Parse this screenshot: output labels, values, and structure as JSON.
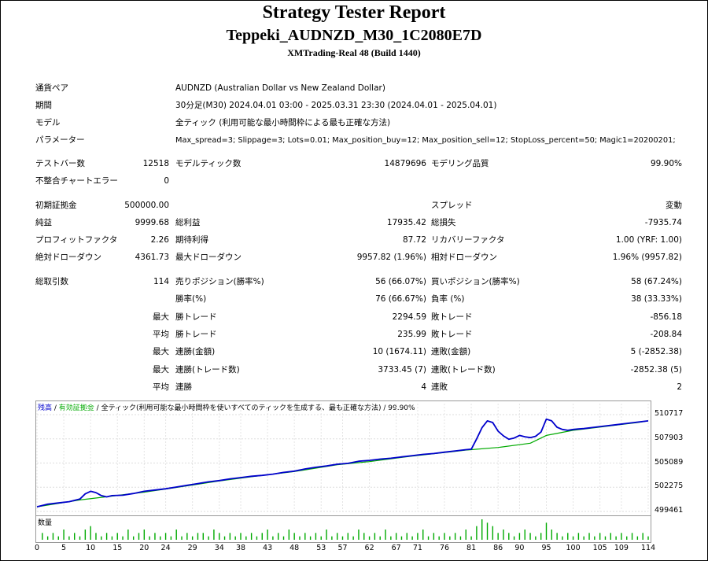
{
  "header": {
    "title": "Strategy Tester Report",
    "ea_name": "Teppeki_AUDNZD_M30_1C2080E7D",
    "server": "XMTrading-Real 48 (Build 1440)"
  },
  "settings": {
    "symbol_label": "通貨ペア",
    "symbol_value": "AUDNZD (Australian Dollar vs New Zealand Dollar)",
    "period_label": "期間",
    "period_value": "30分足(M30)  2024.04.01 03:00 - 2025.03.31 23:30 (2024.04.01 - 2025.04.01)",
    "model_label": "モデル",
    "model_value": "全ティック (利用可能な最小時間枠による最も正確な方法)",
    "params_label": "パラメーター",
    "params_value": "Max_spread=3; Slippage=3; Lots=0.01; Max_position_buy=12; Max_position_sell=12; StopLoss_percent=50; Magic1=20200201;"
  },
  "stats": {
    "bars_label": "テストバー数",
    "bars_value": "12518",
    "ticks_label": "モデルティック数",
    "ticks_value": "14879696",
    "quality_label": "モデリング品質",
    "quality_value": "99.90%",
    "mismatch_label": "不整合チャートエラー",
    "mismatch_value": "0",
    "deposit_label": "初期証拠金",
    "deposit_value": "500000.00",
    "spread_label": "スプレッド",
    "spread_value": "変動",
    "netprofit_label": "純益",
    "netprofit_value": "9999.68",
    "grossprofit_label": "総利益",
    "grossprofit_value": "17935.42",
    "grossloss_label": "総損失",
    "grossloss_value": "-7935.74",
    "pf_label": "プロフィットファクタ",
    "pf_value": "2.26",
    "payoff_label": "期待利得",
    "payoff_value": "87.72",
    "rf_label": "リカバリーファクタ",
    "rf_value": "1.00 (YRF: 1.00)",
    "absdd_label": "絶対ドローダウン",
    "absdd_value": "4361.73",
    "maxdd_label": "最大ドローダウン",
    "maxdd_value": "9957.82 (1.96%)",
    "reldd_label": "相対ドローダウン",
    "reldd_value": "1.96% (9957.82)",
    "trades_label": "総取引数",
    "trades_value": "114",
    "short_label": "売りポジション(勝率%)",
    "short_value": "56 (66.07%)",
    "long_label": "買いポジション(勝率%)",
    "long_value": "58 (67.24%)",
    "winrate_label": "勝率(%)",
    "winrate_value": "76 (66.67%)",
    "lossrate_label": "負率 (%)",
    "lossrate_value": "38 (33.33%)",
    "max_label": "最大",
    "avg_label": "平均",
    "maxwin_label": "勝トレード",
    "maxwin_value": "2294.59",
    "maxloss_label": "敗トレード",
    "maxloss_value": "-856.18",
    "avgwin_label": "勝トレード",
    "avgwin_value": "235.99",
    "avgloss_label": "敗トレード",
    "avgloss_value": "-208.84",
    "consecwins_money_label": "連勝(金額)",
    "consecwins_money_value": "10 (1674.11)",
    "consecloss_money_label": "連敗(金額)",
    "consecloss_money_value": "5 (-2852.38)",
    "consecwins_trades_label": "連勝(トレード数)",
    "consecwins_trades_value": "3733.45 (7)",
    "consecloss_trades_label": "連敗(トレード数)",
    "consecloss_trades_value": "-2852.38 (5)",
    "avgwins_label": "連勝",
    "avgwins_value": "4",
    "avglosses_label": "連敗",
    "avglosses_value": "2"
  },
  "chart_legend": {
    "balance": "残高",
    "sep1": " / ",
    "equity": "有効証拠金",
    "sep2": " / ",
    "desc": "全ティック(利用可能な最小時間枠を使いすべてのティックを生成する、最も正確な方法) / 99.90%",
    "volume": "数量"
  },
  "colors": {
    "balance": "#0000cc",
    "equity": "#00aa00",
    "volume": "#00aa00"
  },
  "chart_data": {
    "type": "line",
    "ylim": [
      499461,
      512000
    ],
    "yticks": [
      "510717",
      "507903",
      "505089",
      "502275",
      "499461"
    ],
    "ytick_values": [
      510717,
      507903,
      505089,
      502275,
      499461
    ],
    "xticks": [
      "0",
      "5",
      "10",
      "15",
      "20",
      "24",
      "29",
      "34",
      "38",
      "43",
      "48",
      "53",
      "57",
      "62",
      "67",
      "71",
      "76",
      "81",
      "86",
      "90",
      "95",
      "100",
      "105",
      "109",
      "114"
    ],
    "xlim": [
      0,
      114
    ],
    "series": [
      {
        "name": "残高",
        "x": [
          0,
          2,
          4,
          6,
          8,
          9,
          10,
          11,
          12,
          13,
          14,
          16,
          18,
          20,
          22,
          24,
          26,
          28,
          30,
          32,
          34,
          36,
          38,
          40,
          42,
          44,
          46,
          48,
          50,
          52,
          54,
          56,
          58,
          60,
          62,
          64,
          66,
          68,
          70,
          72,
          74,
          76,
          78,
          80,
          81,
          82,
          83,
          84,
          85,
          86,
          87,
          88,
          89,
          90,
          91,
          92,
          93,
          94,
          95,
          96,
          97,
          98,
          99,
          100,
          101,
          102,
          104,
          106,
          108,
          110,
          112,
          114
        ],
        "y": [
          500000,
          500300,
          500450,
          500600,
          500900,
          501500,
          501800,
          501650,
          501300,
          501150,
          501300,
          501350,
          501550,
          501800,
          501950,
          502100,
          502300,
          502500,
          502700,
          502900,
          503050,
          503250,
          503400,
          503550,
          503650,
          503800,
          504000,
          504150,
          504400,
          504600,
          504750,
          504950,
          505050,
          505300,
          505400,
          505550,
          505650,
          505800,
          505950,
          506100,
          506200,
          506350,
          506500,
          506650,
          506700,
          507900,
          509200,
          510000,
          509800,
          508800,
          508250,
          507850,
          508000,
          508300,
          508150,
          508050,
          508200,
          508700,
          510200,
          510000,
          509250,
          509000,
          508900,
          509000,
          509050,
          509100,
          509250,
          509400,
          509550,
          509700,
          509850,
          510000
        ]
      },
      {
        "name": "有効証拠金",
        "x": [
          0,
          8,
          14,
          20,
          26,
          34,
          40,
          48,
          56,
          62,
          70,
          78,
          80,
          81,
          86,
          92,
          95,
          100,
          104,
          108,
          112,
          114
        ],
        "y": [
          500000,
          500800,
          501250,
          501700,
          502250,
          503000,
          503500,
          504100,
          504900,
          505250,
          505900,
          506450,
          506600,
          506650,
          506900,
          507400,
          508300,
          508900,
          509200,
          509500,
          509800,
          510000
        ]
      }
    ],
    "volume": {
      "x": [
        1,
        2,
        3,
        4,
        5,
        6,
        7,
        8,
        9,
        10,
        11,
        12,
        13,
        14,
        15,
        16,
        17,
        18,
        19,
        20,
        21,
        22,
        23,
        24,
        25,
        26,
        27,
        28,
        29,
        30,
        31,
        32,
        33,
        34,
        35,
        36,
        37,
        38,
        39,
        40,
        41,
        42,
        43,
        44,
        45,
        46,
        47,
        48,
        49,
        50,
        51,
        52,
        53,
        54,
        55,
        56,
        57,
        58,
        59,
        60,
        61,
        62,
        63,
        64,
        65,
        66,
        67,
        68,
        69,
        70,
        71,
        72,
        73,
        74,
        75,
        76,
        77,
        78,
        79,
        80,
        81,
        82,
        83,
        84,
        85,
        86,
        87,
        88,
        89,
        90,
        91,
        92,
        93,
        94,
        95,
        96,
        97,
        98,
        99,
        100,
        101,
        102,
        103,
        104,
        105,
        106,
        107,
        108,
        109,
        110,
        111,
        112,
        113,
        114
      ],
      "y": [
        2,
        1,
        2,
        1,
        3,
        1,
        2,
        1,
        3,
        4,
        2,
        1,
        2,
        1,
        2,
        1,
        3,
        1,
        2,
        3,
        1,
        2,
        1,
        2,
        1,
        3,
        1,
        2,
        1,
        2,
        2,
        1,
        3,
        2,
        1,
        2,
        1,
        2,
        1,
        2,
        1,
        2,
        3,
        1,
        2,
        1,
        3,
        2,
        1,
        2,
        1,
        2,
        1,
        3,
        1,
        2,
        1,
        2,
        1,
        3,
        2,
        1,
        2,
        1,
        3,
        1,
        2,
        1,
        2,
        1,
        2,
        3,
        1,
        2,
        1,
        2,
        1,
        2,
        1,
        3,
        1,
        4,
        6,
        5,
        4,
        2,
        3,
        2,
        1,
        2,
        3,
        2,
        1,
        2,
        5,
        3,
        2,
        1,
        2,
        1,
        2,
        1,
        2,
        1,
        2,
        1,
        2,
        1,
        2,
        1,
        2,
        1,
        2,
        1
      ]
    }
  }
}
